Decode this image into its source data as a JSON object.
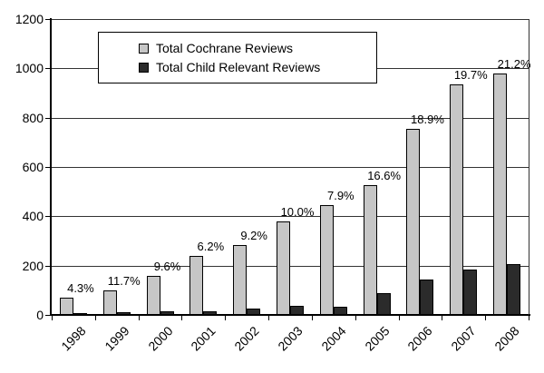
{
  "chart_data": {
    "type": "bar",
    "title": "",
    "xlabel": "",
    "ylabel": "",
    "categories": [
      "1998",
      "1999",
      "2000",
      "2001",
      "2002",
      "2003",
      "2004",
      "2005",
      "2006",
      "2007",
      "2008"
    ],
    "series": [
      {
        "name": "Total Cochrane Reviews",
        "color": "#c6c6c6",
        "values": [
          70,
          100,
          160,
          240,
          285,
          380,
          445,
          525,
          755,
          935,
          980
        ]
      },
      {
        "name": "Total Child Relevant Reviews",
        "color": "#2b2b2b",
        "values": [
          3,
          12,
          15,
          15,
          26,
          38,
          35,
          87,
          143,
          184,
          208
        ]
      }
    ],
    "bar_labels": [
      "4.3%",
      "11.7%",
      "9.6%",
      "6.2%",
      "9.2%",
      "10.0%",
      "7.9%",
      "16.6%",
      "18.9%",
      "19.7%",
      "21.2%"
    ],
    "ylim": [
      0,
      1200
    ],
    "ytick_interval": 200,
    "yticks": [
      "0",
      "200",
      "400",
      "600",
      "800",
      "1000",
      "1200"
    ],
    "grid": true,
    "legend_position": "top-left-inside"
  },
  "colors": {
    "background": "#ffffff",
    "axis": "#000000",
    "gridline": "#333333",
    "bar_border": "#000000",
    "light_bar": "#c6c6c6",
    "dark_bar": "#2b2b2b"
  }
}
